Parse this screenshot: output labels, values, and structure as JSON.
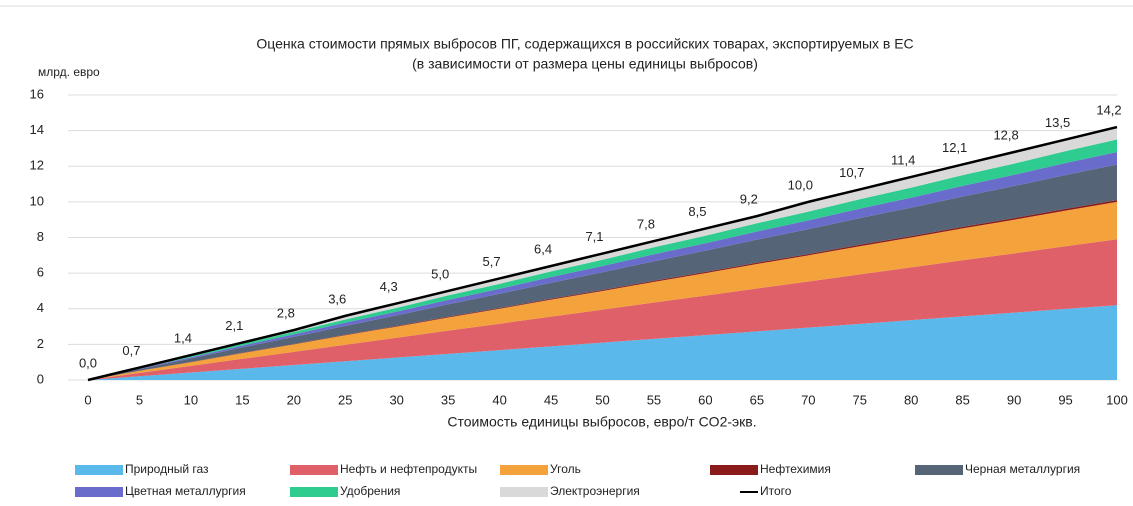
{
  "chart_data": {
    "type": "stacked_area",
    "title": "Оценка стоимости прямых выбросов ПГ, содержащихся в российских товарах, экспортируемых в ЕС",
    "subtitle": "(в зависимости от размера цены единицы выбросов)",
    "y_label": "млрд. евро",
    "x_label": "Стоимость единицы выбросов, евро/т CO2-экв.",
    "x": [
      0,
      5,
      10,
      15,
      20,
      25,
      30,
      35,
      40,
      45,
      50,
      55,
      60,
      65,
      70,
      75,
      80,
      85,
      90,
      95,
      100
    ],
    "xlim": [
      0,
      100
    ],
    "xticks": [
      0,
      5,
      10,
      15,
      20,
      25,
      30,
      35,
      40,
      45,
      50,
      55,
      60,
      65,
      70,
      75,
      80,
      85,
      90,
      95,
      100
    ],
    "ylim": [
      0,
      16
    ],
    "yticks": [
      0,
      2,
      4,
      6,
      8,
      10,
      12,
      14,
      16
    ],
    "grid": true,
    "legend": "bottom",
    "series": [
      {
        "name": "Природный газ",
        "color": "#5bb8ea",
        "values": [
          0,
          0.21,
          0.42,
          0.63,
          0.84,
          1.05,
          1.26,
          1.47,
          1.68,
          1.89,
          2.1,
          2.31,
          2.52,
          2.73,
          2.94,
          3.15,
          3.36,
          3.57,
          3.78,
          3.99,
          4.2
        ]
      },
      {
        "name": "Нефть и нефтепродукты",
        "color": "#e0606a",
        "values": [
          0,
          0.19,
          0.37,
          0.56,
          0.74,
          0.93,
          1.11,
          1.3,
          1.48,
          1.67,
          1.85,
          2.04,
          2.22,
          2.41,
          2.59,
          2.78,
          2.96,
          3.15,
          3.33,
          3.52,
          3.7
        ]
      },
      {
        "name": "Уголь",
        "color": "#f4a23c",
        "values": [
          0,
          0.11,
          0.21,
          0.32,
          0.42,
          0.53,
          0.63,
          0.74,
          0.84,
          0.95,
          1.05,
          1.16,
          1.26,
          1.37,
          1.47,
          1.58,
          1.68,
          1.79,
          1.89,
          2.0,
          2.1
        ]
      },
      {
        "name": "Нефтехимия",
        "color": "#8b1a1a",
        "values": [
          0,
          0.01,
          0.01,
          0.02,
          0.02,
          0.03,
          0.03,
          0.04,
          0.04,
          0.05,
          0.05,
          0.06,
          0.06,
          0.07,
          0.07,
          0.08,
          0.08,
          0.09,
          0.09,
          0.1,
          0.1
        ]
      },
      {
        "name": "Черная металлургия",
        "color": "#556577",
        "values": [
          0,
          0.1,
          0.2,
          0.3,
          0.4,
          0.5,
          0.6,
          0.7,
          0.8,
          0.9,
          1.0,
          1.1,
          1.2,
          1.3,
          1.4,
          1.5,
          1.6,
          1.7,
          1.8,
          1.9,
          2.0
        ]
      },
      {
        "name": "Цветная металлургия",
        "color": "#6a6ccc",
        "values": [
          0,
          0.04,
          0.07,
          0.11,
          0.14,
          0.18,
          0.21,
          0.25,
          0.28,
          0.32,
          0.35,
          0.39,
          0.42,
          0.46,
          0.49,
          0.53,
          0.56,
          0.6,
          0.63,
          0.67,
          0.7
        ]
      },
      {
        "name": "Удобрения",
        "color": "#2ecc8f",
        "values": [
          0,
          0.04,
          0.07,
          0.11,
          0.14,
          0.18,
          0.21,
          0.25,
          0.28,
          0.32,
          0.35,
          0.39,
          0.42,
          0.46,
          0.49,
          0.53,
          0.56,
          0.6,
          0.63,
          0.67,
          0.7
        ]
      },
      {
        "name": "Электроэнергия",
        "color": "#d9d9d9",
        "values": [
          0,
          0.04,
          0.07,
          0.11,
          0.14,
          0.18,
          0.21,
          0.25,
          0.28,
          0.32,
          0.35,
          0.39,
          0.42,
          0.46,
          0.49,
          0.53,
          0.56,
          0.6,
          0.63,
          0.67,
          0.7
        ]
      }
    ],
    "total": {
      "name": "Итого",
      "color": "#000000",
      "values": [
        0.0,
        0.7,
        1.4,
        2.1,
        2.8,
        3.6,
        4.3,
        5.0,
        5.7,
        6.4,
        7.1,
        7.8,
        8.5,
        9.2,
        10.0,
        10.7,
        11.4,
        12.1,
        12.8,
        13.5,
        14.2
      ],
      "value_labels": [
        "0,0",
        "0,7",
        "1,4",
        "2,1",
        "2,8",
        "3,6",
        "4,3",
        "5,0",
        "5,7",
        "6,4",
        "7,1",
        "7,8",
        "8,5",
        "9,2",
        "10,0",
        "10,7",
        "11,4",
        "12,1",
        "12,8",
        "13,5",
        "14,2"
      ]
    }
  }
}
